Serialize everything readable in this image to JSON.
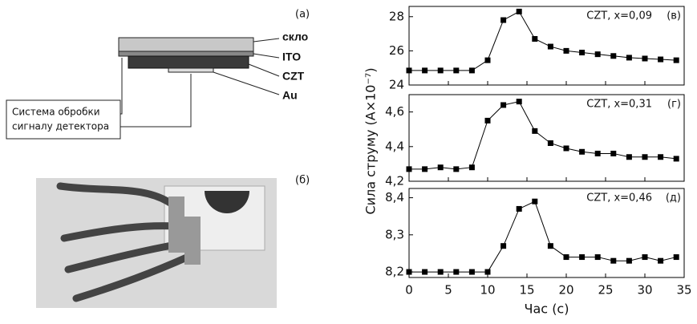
{
  "diagram": {
    "panel_a": "(a)",
    "layers": [
      "скло",
      "ITO",
      "CZT",
      "Au"
    ],
    "box": [
      "Система обробки",
      "сигналу детектора"
    ],
    "panel_b": "(б)"
  },
  "figure": {
    "ylabel": "Сила струму (A×10⁻⁷)",
    "xlabel": "Час (с)"
  },
  "chart_data": [
    {
      "type": "line",
      "title": "CZT, x=0,09",
      "panel": "(в)",
      "color": "#000000",
      "x": [
        0,
        2,
        4,
        6,
        8,
        10,
        12,
        14,
        16,
        18,
        20,
        22,
        24,
        26,
        28,
        30,
        32,
        34
      ],
      "values": [
        24.85,
        24.85,
        24.85,
        24.85,
        24.85,
        25.45,
        27.8,
        28.3,
        26.7,
        26.25,
        26.0,
        25.9,
        25.8,
        25.7,
        25.6,
        25.55,
        25.5,
        25.45
      ],
      "xlim": [
        0,
        35
      ],
      "xticks": [
        0,
        5,
        10,
        15,
        20,
        25,
        30,
        35
      ],
      "ylim": [
        24,
        28.6
      ],
      "yticks": [
        24,
        26,
        28
      ]
    },
    {
      "type": "line",
      "title": "CZT, x=0,31",
      "panel": "(г)",
      "color": "#000000",
      "x": [
        0,
        2,
        4,
        6,
        8,
        10,
        12,
        14,
        16,
        18,
        20,
        22,
        24,
        26,
        28,
        30,
        32,
        34
      ],
      "values": [
        4.27,
        4.27,
        4.28,
        4.27,
        4.28,
        4.55,
        4.64,
        4.66,
        4.49,
        4.42,
        4.39,
        4.37,
        4.36,
        4.36,
        4.34,
        4.34,
        4.34,
        4.33
      ],
      "xlim": [
        0,
        35
      ],
      "xticks": [
        0,
        5,
        10,
        15,
        20,
        25,
        30,
        35
      ],
      "ylim": [
        4.2,
        4.7
      ],
      "yticks": [
        {
          "value": 4.2,
          "label": "4,2"
        },
        {
          "value": 4.4,
          "label": "4,4"
        },
        {
          "value": 4.6,
          "label": "4,6"
        }
      ]
    },
    {
      "type": "line",
      "title": "CZT, x=0,46",
      "panel": "(д)",
      "color": "#000000",
      "x": [
        0,
        2,
        4,
        6,
        8,
        10,
        12,
        14,
        16,
        18,
        20,
        22,
        24,
        26,
        28,
        30,
        32,
        34
      ],
      "values": [
        8.2,
        8.2,
        8.2,
        8.2,
        8.2,
        8.2,
        8.27,
        8.37,
        8.39,
        8.27,
        8.24,
        8.24,
        8.24,
        8.23,
        8.23,
        8.24,
        8.23,
        8.24
      ],
      "xlim": [
        0,
        35
      ],
      "xticks": [
        0,
        5,
        10,
        15,
        20,
        25,
        30,
        35
      ],
      "ylim": [
        8.185,
        8.425
      ],
      "yticks": [
        {
          "value": 8.2,
          "label": "8,2"
        },
        {
          "value": 8.3,
          "label": "8,3"
        },
        {
          "value": 8.4,
          "label": "8,4"
        }
      ]
    }
  ]
}
